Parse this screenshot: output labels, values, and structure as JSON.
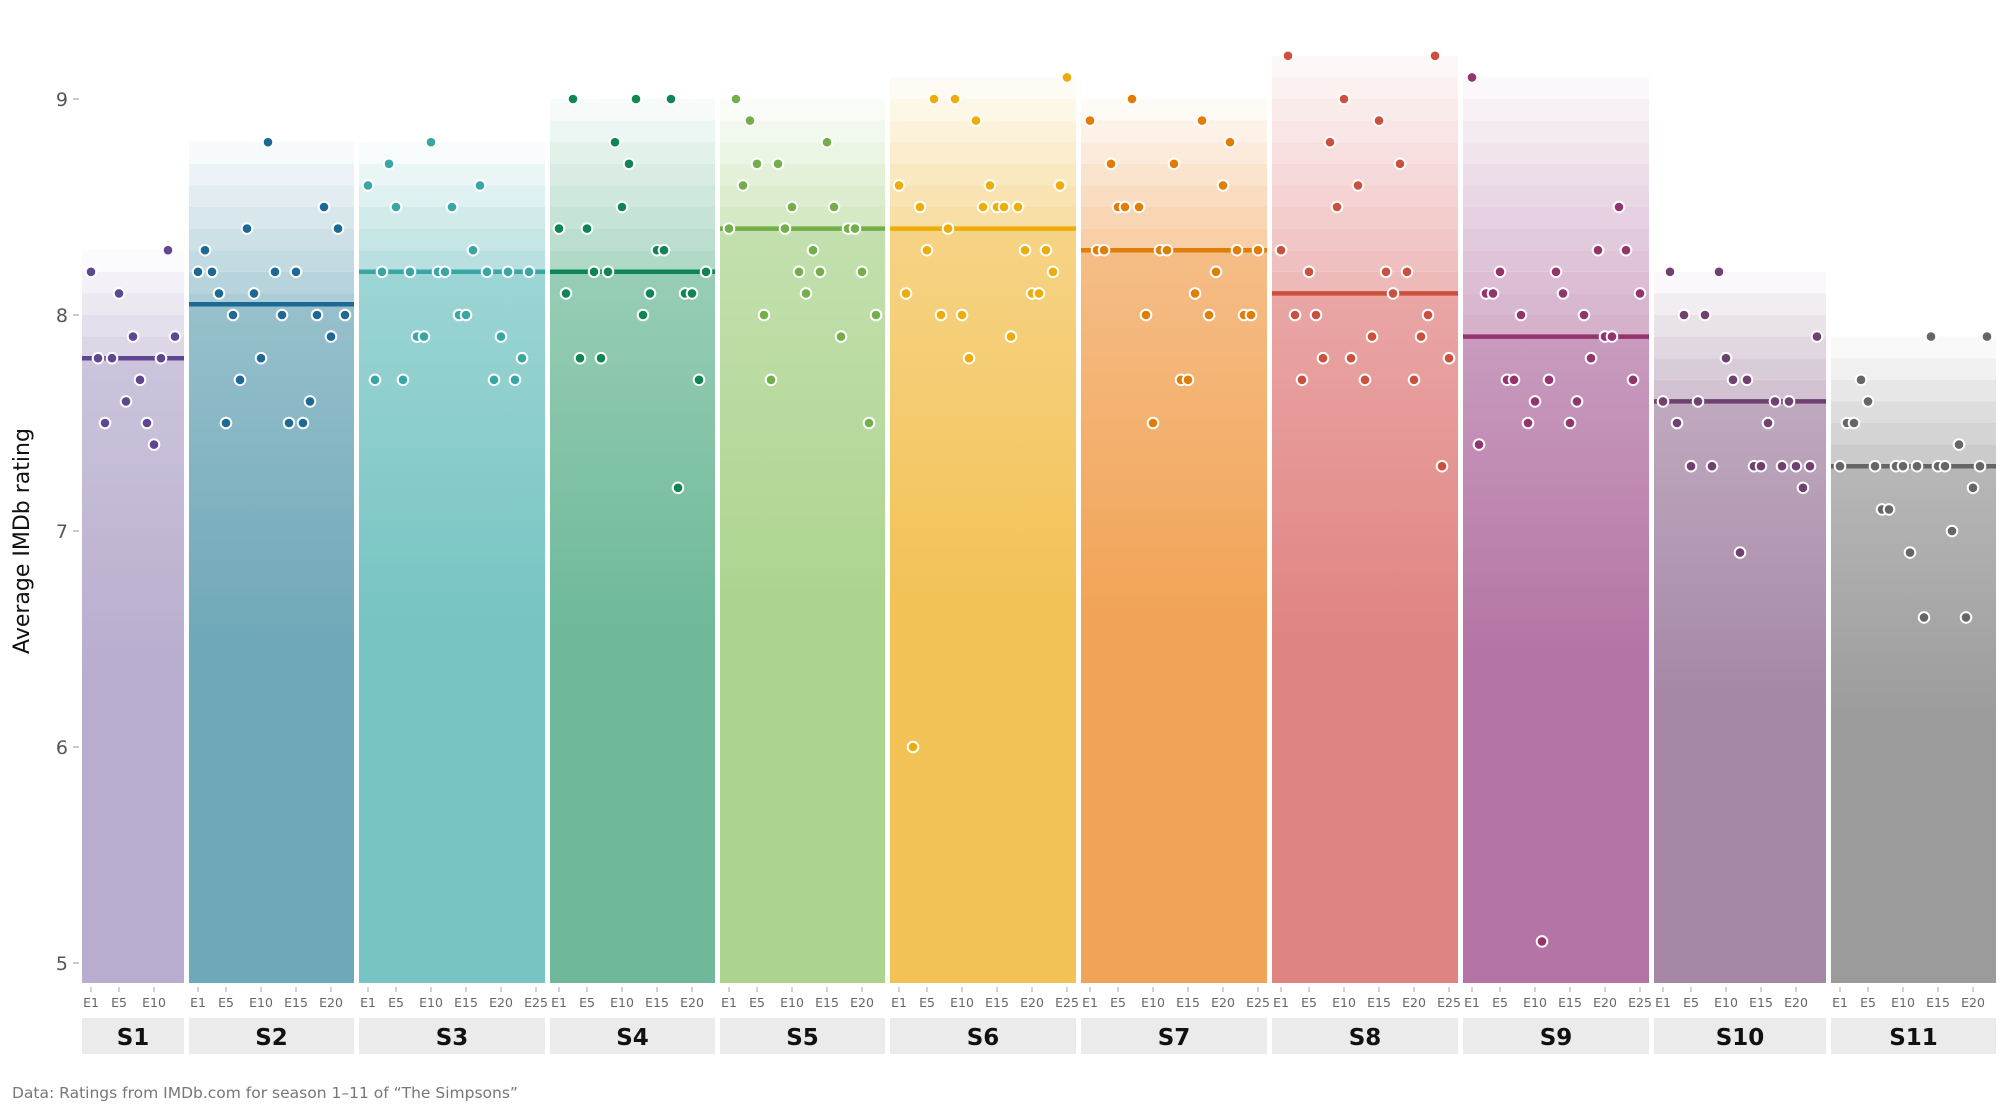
{
  "chart_data": {
    "type": "scatter",
    "ylabel": "Average IMDb rating",
    "ylim": [
      4.9,
      9.3
    ],
    "yticks": [
      5,
      6,
      7,
      8,
      9
    ],
    "ytick_labels": [
      "5",
      "6",
      "7",
      "8",
      "9"
    ],
    "caption": "Data: Ratings from IMDb.com for season 1–11 of “The Simpsons”",
    "facets": [
      {
        "label": "S1",
        "color": "#5F4690",
        "fill": "#B8ADCE",
        "mean": 7.8,
        "xticks": [
          "E1",
          "E5",
          "E10"
        ],
        "tick_eps": [
          1,
          5,
          10
        ],
        "ratings": [
          8.2,
          7.8,
          7.5,
          7.8,
          8.1,
          7.6,
          7.9,
          7.7,
          7.5,
          7.4,
          7.8,
          8.3,
          7.9
        ]
      },
      {
        "label": "S2",
        "color": "#1D6996",
        "fill": "#6FA8B8",
        "mean": 8.05,
        "xticks": [
          "E1",
          "E5",
          "E10",
          "E15",
          "E20"
        ],
        "tick_eps": [
          1,
          5,
          10,
          15,
          20
        ],
        "ratings": [
          8.2,
          8.3,
          8.2,
          8.1,
          7.5,
          8.0,
          7.7,
          8.4,
          8.1,
          7.8,
          8.8,
          8.2,
          8.0,
          7.5,
          8.2,
          7.5,
          7.6,
          8.0,
          8.5,
          7.9,
          8.4,
          8.0
        ]
      },
      {
        "label": "S3",
        "color": "#38A6A5",
        "fill": "#76C4C3",
        "mean": 8.2,
        "xticks": [
          "E1",
          "E5",
          "E10",
          "E15",
          "E20",
          "E25"
        ],
        "tick_eps": [
          1,
          5,
          10,
          15,
          20,
          25
        ],
        "ratings": [
          8.6,
          7.7,
          8.2,
          8.7,
          8.5,
          7.7,
          8.2,
          7.9,
          7.9,
          8.8,
          8.2,
          8.2,
          8.5,
          8.0,
          8.0,
          8.3,
          8.6,
          8.2,
          7.7,
          7.9,
          8.2,
          7.7,
          7.8,
          8.2
        ]
      },
      {
        "label": "S4",
        "color": "#0F8554",
        "fill": "#6FB99A",
        "mean": 8.2,
        "xticks": [
          "E1",
          "E5",
          "E10",
          "E15",
          "E20"
        ],
        "tick_eps": [
          1,
          5,
          10,
          15,
          20
        ],
        "ratings": [
          8.4,
          8.1,
          9.0,
          7.8,
          8.4,
          8.2,
          7.8,
          8.2,
          8.8,
          8.5,
          8.7,
          9.0,
          8.0,
          8.1,
          8.3,
          8.3,
          9.0,
          7.2,
          8.1,
          8.1,
          7.7,
          8.2
        ]
      },
      {
        "label": "S5",
        "color": "#73AF48",
        "fill": "#ACD48E",
        "mean": 8.4,
        "xticks": [
          "E1",
          "E5",
          "E10",
          "E15",
          "E20"
        ],
        "tick_eps": [
          1,
          5,
          10,
          15,
          20
        ],
        "ratings": [
          8.4,
          9.0,
          8.6,
          8.9,
          8.7,
          8.0,
          7.7,
          8.7,
          8.4,
          8.5,
          8.2,
          8.1,
          8.3,
          8.2,
          8.8,
          8.5,
          7.9,
          8.4,
          8.4,
          8.2,
          7.5,
          8.0
        ]
      },
      {
        "label": "S6",
        "color": "#EDAD08",
        "fill": "#F2C256",
        "mean": 8.4,
        "xticks": [
          "E1",
          "E5",
          "E10",
          "E15",
          "E20",
          "E25"
        ],
        "tick_eps": [
          1,
          5,
          10,
          15,
          20,
          25
        ],
        "ratings": [
          8.6,
          8.1,
          6.0,
          8.5,
          8.3,
          9.0,
          8.0,
          8.4,
          9.0,
          8.0,
          7.8,
          8.9,
          8.5,
          8.6,
          8.5,
          8.5,
          7.9,
          8.5,
          8.3,
          8.1,
          8.1,
          8.3,
          8.2,
          8.6,
          9.1
        ]
      },
      {
        "label": "S7",
        "color": "#E17C05",
        "fill": "#F1A457",
        "mean": 8.3,
        "xticks": [
          "E1",
          "E5",
          "E10",
          "E15",
          "E20",
          "E25"
        ],
        "tick_eps": [
          1,
          5,
          10,
          15,
          20,
          25
        ],
        "ratings": [
          8.9,
          8.3,
          8.3,
          8.7,
          8.5,
          8.5,
          9.0,
          8.5,
          8.0,
          7.5,
          8.3,
          8.3,
          8.7,
          7.7,
          7.7,
          8.1,
          8.9,
          8.0,
          8.2,
          8.6,
          8.8,
          8.3,
          8.0,
          8.0,
          8.3
        ]
      },
      {
        "label": "S8",
        "color": "#CC503E",
        "fill": "#E08482",
        "mean": 8.1,
        "xticks": [
          "E1",
          "E5",
          "E10",
          "E15",
          "E20",
          "E25"
        ],
        "tick_eps": [
          1,
          5,
          10,
          15,
          20,
          25
        ],
        "ratings": [
          8.3,
          9.2,
          8.0,
          7.7,
          8.2,
          8.0,
          7.8,
          8.8,
          8.5,
          9.0,
          7.8,
          8.6,
          7.7,
          7.9,
          8.9,
          8.2,
          8.1,
          8.7,
          8.2,
          7.7,
          7.9,
          8.0,
          9.2,
          7.3,
          7.8
        ]
      },
      {
        "label": "S9",
        "color": "#94346E",
        "fill": "#B474A5",
        "mean": 7.9,
        "xticks": [
          "E1",
          "E5",
          "E10",
          "E15",
          "E20",
          "E25"
        ],
        "tick_eps": [
          1,
          5,
          10,
          15,
          20,
          25
        ],
        "ratings": [
          9.1,
          7.4,
          8.1,
          8.1,
          8.2,
          7.7,
          7.7,
          8.0,
          7.5,
          7.6,
          5.1,
          7.7,
          8.2,
          8.1,
          7.5,
          7.6,
          8.0,
          7.8,
          8.3,
          7.9,
          7.9,
          8.5,
          8.3,
          7.7,
          8.1
        ]
      },
      {
        "label": "S10",
        "color": "#6F4070",
        "fill": "#A688A6",
        "mean": 7.6,
        "xticks": [
          "E1",
          "E5",
          "E10",
          "E15",
          "E20"
        ],
        "tick_eps": [
          1,
          5,
          10,
          15,
          20
        ],
        "ratings": [
          7.6,
          8.2,
          7.5,
          8.0,
          7.3,
          7.6,
          8.0,
          7.3,
          8.2,
          7.8,
          7.7,
          6.9,
          7.7,
          7.3,
          7.3,
          7.5,
          7.6,
          7.3,
          7.6,
          7.3,
          7.2,
          7.3,
          7.9
        ]
      },
      {
        "label": "S11",
        "color": "#666666",
        "fill": "#9B9B9B",
        "mean": 7.3,
        "xticks": [
          "E1",
          "E5",
          "E10",
          "E15",
          "E20"
        ],
        "tick_eps": [
          1,
          5,
          10,
          15,
          20
        ],
        "ratings": [
          7.3,
          7.5,
          7.5,
          7.7,
          7.6,
          7.3,
          7.1,
          7.1,
          7.3,
          7.3,
          6.9,
          7.3,
          6.6,
          7.9,
          7.3,
          7.3,
          7.0,
          7.4,
          6.6,
          7.2,
          7.3,
          7.9
        ]
      }
    ]
  }
}
